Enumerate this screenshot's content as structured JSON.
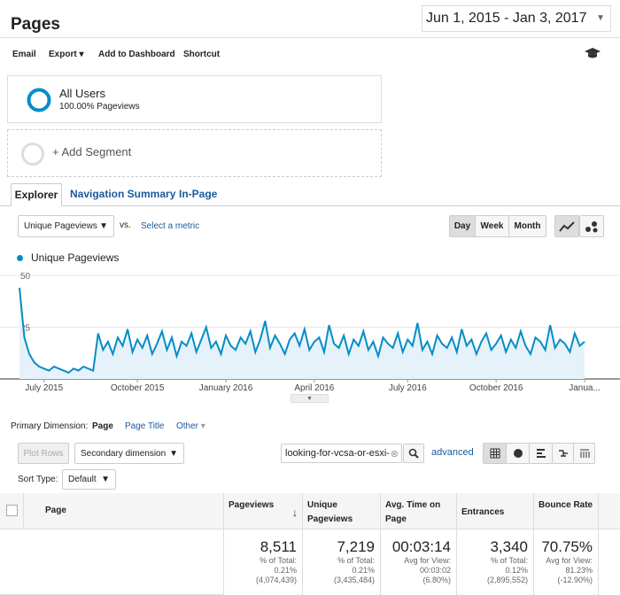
{
  "header": {
    "title": "Pages",
    "date_range": "Jun 1, 2015 - Jan 3, 2017"
  },
  "toolbar": {
    "items": [
      "Email",
      "Export",
      "Add to Dashboard",
      "Shortcut"
    ]
  },
  "segments": [
    {
      "name": "All Users",
      "detail": "100.00% Pageviews"
    }
  ],
  "add_segment": "+ Add Segment",
  "tabs": [
    "Explorer",
    "Navigation Summary",
    "In-Page"
  ],
  "metric_picker": {
    "selected": "Unique Pageviews",
    "vs": "vs.",
    "select_metric": "Select a metric"
  },
  "periods": [
    "Day",
    "Week",
    "Month"
  ],
  "chart_data": {
    "type": "line",
    "grid": true,
    "series": [
      {
        "name": "Unique Pageviews",
        "color": "#058dc7",
        "values": [
          44,
          20,
          12,
          8,
          6,
          5,
          4,
          6,
          5,
          4,
          3,
          5,
          4,
          6,
          5,
          4,
          22,
          14,
          18,
          12,
          20,
          16,
          24,
          13,
          19,
          15,
          21,
          12,
          17,
          23,
          14,
          20,
          11,
          18,
          16,
          22,
          13,
          19,
          25,
          15,
          18,
          12,
          21,
          16,
          14,
          20,
          17,
          23,
          13,
          19,
          28,
          15,
          21,
          17,
          12,
          19,
          22,
          16,
          24,
          14,
          18,
          20,
          13,
          26,
          17,
          15,
          21,
          12,
          19,
          16,
          23,
          14,
          18,
          11,
          20,
          17,
          15,
          22,
          13,
          19,
          16,
          27,
          14,
          18,
          12,
          21,
          17,
          15,
          20,
          13,
          24,
          16,
          19,
          12,
          18,
          22,
          14,
          17,
          21,
          13,
          19,
          15,
          23,
          16,
          12,
          20,
          18,
          14,
          26,
          15,
          19,
          17,
          13,
          22,
          16,
          18
        ]
      }
    ],
    "ylim": [
      0,
      50
    ],
    "yticks": [
      25,
      50
    ],
    "xlim": [
      0,
      115
    ],
    "xticks": [
      {
        "value": 5,
        "label": "July 2015"
      },
      {
        "value": 24,
        "label": "October 2015"
      },
      {
        "value": 42,
        "label": "January 2016"
      },
      {
        "value": 60,
        "label": "April 2016"
      },
      {
        "value": 79,
        "label": "July 2016"
      },
      {
        "value": 97,
        "label": "October 2016"
      },
      {
        "value": 115,
        "label": "Janua..."
      }
    ]
  },
  "dimension": {
    "label": "Primary Dimension:",
    "active": "Page",
    "options": [
      "Page Title",
      "Other"
    ]
  },
  "controls": {
    "plot_rows": "Plot Rows",
    "secondary": "Secondary dimension",
    "search": "looking-for-vcsa-or-esxi-",
    "advanced": "advanced",
    "sort_label": "Sort Type:",
    "sort_value": "Default"
  },
  "table": {
    "headers": [
      "Page",
      "Pageviews",
      "Unique Pageviews",
      "Avg. Time on Page",
      "Entrances",
      "Bounce Rate"
    ],
    "totals": [
      {
        "value": "8,511",
        "label": "% of Total:",
        "view": "0.21%",
        "total": "(4,074,439)"
      },
      {
        "value": "7,219",
        "label": "% of Total:",
        "view": "0.21%",
        "total": "(3,435,484)"
      },
      {
        "value": "00:03:14",
        "label": "Avg for View:",
        "view": "00:03:02",
        "total": "(6.80%)"
      },
      {
        "value": "3,340",
        "label": "% of Total:",
        "view": "0.12%",
        "total": "(2,895,552)"
      },
      {
        "value": "70.75%",
        "label": "Avg for View:",
        "view": "81.23%",
        "total": "(-12.90%)"
      }
    ]
  }
}
